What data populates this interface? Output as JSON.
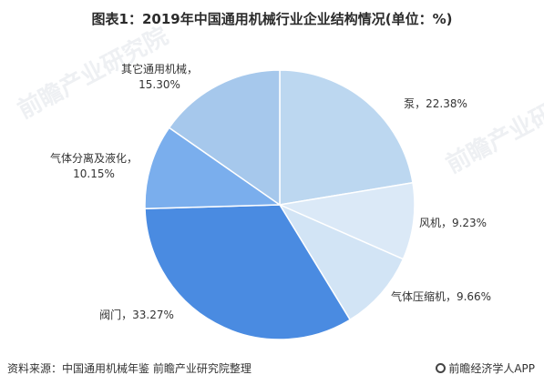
{
  "title": "图表1：2019年中国通用机械行业企业结构情况(单位：%)",
  "source": "资料来源：中国通用机械年鉴 前瞻产业研究院整理",
  "brand": "前瞻经济学人APP",
  "watermark": "前瞻产业研究院",
  "chart_data": {
    "type": "pie",
    "title": "图表1：2019年中国通用机械行业企业结构情况(单位：%)",
    "slices": [
      {
        "name": "泵",
        "value": 22.38,
        "label": "泵，22.38%",
        "color": "#bcd7f0"
      },
      {
        "name": "风机",
        "value": 9.23,
        "label": "风机，9.23%",
        "color": "#dbe9f7"
      },
      {
        "name": "气体压缩机",
        "value": 9.66,
        "label": "气体压缩机，9.66%",
        "color": "#d2e4f5"
      },
      {
        "name": "阀门",
        "value": 33.27,
        "label": "阀门，33.27%",
        "color": "#4a8be1"
      },
      {
        "name": "气体分离及液化",
        "value": 10.15,
        "label_lines": [
          "气体分离及液化，",
          "10.15%"
        ],
        "color": "#7aaeed"
      },
      {
        "name": "其它通用机械",
        "value": 15.3,
        "label_lines": [
          "其它通用机械，",
          "15.30%"
        ],
        "color": "#a6c8ec"
      }
    ],
    "start": "12 o'clock",
    "direction": "clockwise",
    "legend": "none"
  }
}
